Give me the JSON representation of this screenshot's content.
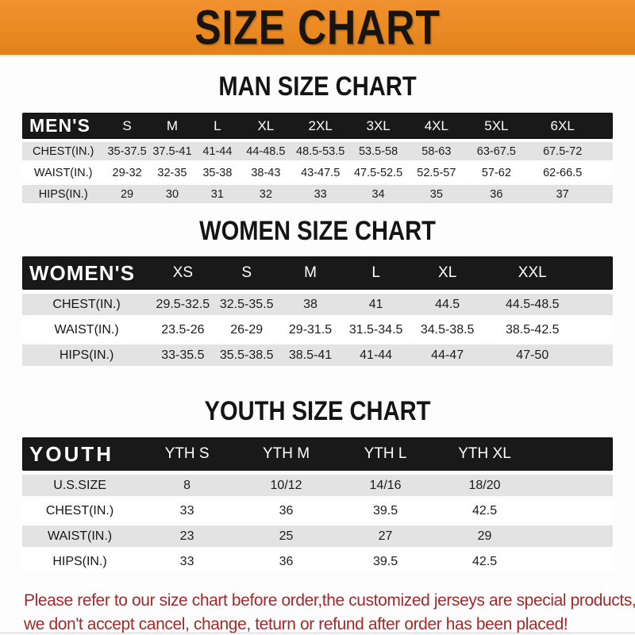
{
  "banner": {
    "title": "SIZE CHART"
  },
  "colors": {
    "banner_bg": "#ea8a22",
    "banner_bg_light": "#f09130",
    "bar_bg": "#191919",
    "row_alt": "#e3e3e3",
    "footer_red": "#9e2b2b"
  },
  "sections": [
    {
      "id": "men",
      "heading": "MAN SIZE CHART",
      "header_label": "MEN'S",
      "columns": [
        "S",
        "M",
        "L",
        "XL",
        "2XL",
        "3XL",
        "4XL",
        "5XL",
        "6XL"
      ],
      "rows": [
        {
          "label": "CHEST(IN.)",
          "values": [
            "35-37.5",
            "37.5-41",
            "41-44",
            "44-48.5",
            "48.5-53.5",
            "53.5-58",
            "58-63",
            "63-67.5",
            "67.5-72"
          ]
        },
        {
          "label": "WAIST(IN.)",
          "values": [
            "29-32",
            "32-35",
            "35-38",
            "38-43",
            "43-47.5",
            "47.5-52.5",
            "52.5-57",
            "57-62",
            "62-66.5"
          ]
        },
        {
          "label": "HIPS(IN.)",
          "values": [
            "29",
            "30",
            "31",
            "32",
            "33",
            "34",
            "35",
            "36",
            "37"
          ]
        }
      ]
    },
    {
      "id": "women",
      "heading": "WOMEN SIZE CHART",
      "header_label": "WOMEN'S",
      "columns": [
        "XS",
        "S",
        "M",
        "L",
        "XL",
        "XXL"
      ],
      "rows": [
        {
          "label": "CHEST(IN.)",
          "values": [
            "29.5-32.5",
            "32.5-35.5",
            "38",
            "41",
            "44.5",
            "44.5-48.5"
          ]
        },
        {
          "label": "WAIST(IN.)",
          "values": [
            "23.5-26",
            "26-29",
            "29-31.5",
            "31.5-34.5",
            "34.5-38.5",
            "38.5-42.5"
          ]
        },
        {
          "label": "HIPS(IN.)",
          "values": [
            "33-35.5",
            "35.5-38.5",
            "38.5-41",
            "41-44",
            "44-47",
            "47-50"
          ]
        }
      ]
    },
    {
      "id": "youth",
      "heading": "YOUTH SIZE CHART",
      "header_label": "YOUTH",
      "columns": [
        "YTH S",
        "YTH M",
        "YTH L",
        "YTH XL"
      ],
      "rows": [
        {
          "label": "U.S.SIZE",
          "values": [
            "8",
            "10/12",
            "14/16",
            "18/20"
          ]
        },
        {
          "label": "CHEST(IN.)",
          "values": [
            "33",
            "36",
            "39.5",
            "42.5"
          ]
        },
        {
          "label": "WAIST(IN.)",
          "values": [
            "23",
            "25",
            "27",
            "29"
          ]
        },
        {
          "label": "HIPS(IN.)",
          "values": [
            "33",
            "36",
            "39.5",
            "42.5"
          ]
        }
      ]
    }
  ],
  "footer": {
    "line1": "Please refer to our size chart before order,the customized jerseys are special products,",
    "line2": "we don't accept cancel, change, teturn or refund after order has been placed!"
  }
}
